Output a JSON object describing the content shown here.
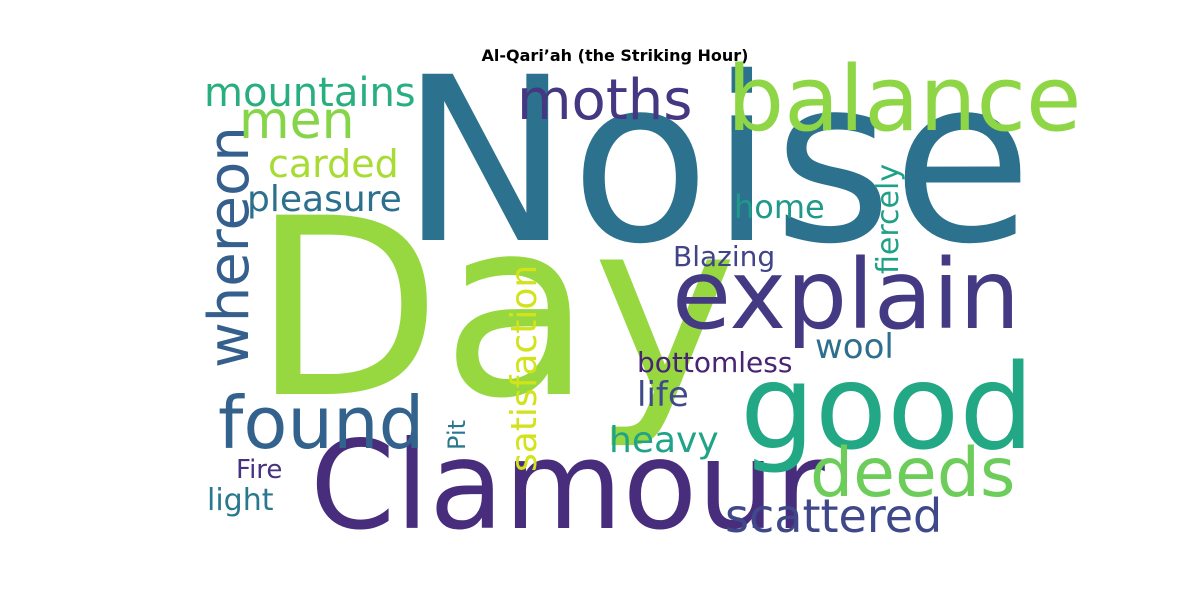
{
  "chart_data": {
    "type": "wordcloud",
    "title": "Al-Qari’ah (the Striking Hour)",
    "words": [
      {
        "text": "Noise",
        "color": "#2c728e"
      },
      {
        "text": "Day",
        "color": "#97d840"
      },
      {
        "text": "Clamour",
        "color": "#472d7b"
      },
      {
        "text": "good",
        "color": "#22a884"
      },
      {
        "text": "explain",
        "color": "#443983"
      },
      {
        "text": "balance",
        "color": "#8ed645"
      },
      {
        "text": "found",
        "color": "#33638d"
      },
      {
        "text": "deeds",
        "color": "#6ccd5a"
      },
      {
        "text": "whereon",
        "color": "#355f8d"
      },
      {
        "text": "moths",
        "color": "#453781"
      },
      {
        "text": "men",
        "color": "#86d549"
      },
      {
        "text": "scattered",
        "color": "#3f4889"
      },
      {
        "text": "mountains",
        "color": "#29af7f"
      },
      {
        "text": "satisfaction",
        "color": "#d2e21b"
      },
      {
        "text": "carded",
        "color": "#a8db34"
      },
      {
        "text": "pleasure",
        "color": "#2d708e"
      },
      {
        "text": "heavy",
        "color": "#20a386"
      },
      {
        "text": "fiercely",
        "color": "#1fa187"
      },
      {
        "text": "wool",
        "color": "#2e6f8e"
      },
      {
        "text": "bottomless",
        "color": "#482475"
      },
      {
        "text": "life",
        "color": "#3e4a89"
      },
      {
        "text": "home",
        "color": "#1f9a8a"
      },
      {
        "text": "Blazing",
        "color": "#414487"
      },
      {
        "text": "Fire",
        "color": "#46327e"
      },
      {
        "text": "light",
        "color": "#2a788e"
      },
      {
        "text": "Pit",
        "color": "#2a788e"
      }
    ]
  }
}
